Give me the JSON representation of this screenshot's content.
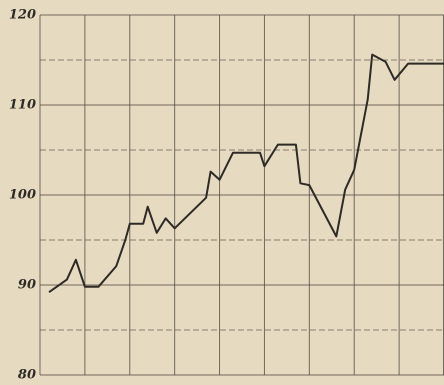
{
  "chart_data": {
    "type": "line",
    "x": [
      0.2,
      0.6,
      0.8,
      1.0,
      1.3,
      1.7,
      1.9,
      2.0,
      2.3,
      2.4,
      2.6,
      2.8,
      3.0,
      3.7,
      3.8,
      4.0,
      4.3,
      4.9,
      5.0,
      5.3,
      5.7,
      5.8,
      6.0,
      6.6,
      6.8,
      7.0,
      7.3,
      7.4,
      7.7,
      7.9,
      8.2,
      9.0
    ],
    "series": [
      {
        "color": "#2e2a26",
        "values": [
          89.2,
          90.6,
          92.8,
          89.8,
          89.8,
          92.1,
          95.0,
          96.8,
          96.8,
          98.7,
          95.8,
          97.4,
          96.3,
          99.7,
          102.6,
          101.7,
          104.7,
          104.7,
          103.2,
          105.6,
          105.6,
          101.3,
          101.1,
          95.4,
          100.6,
          102.8,
          110.6,
          115.6,
          114.8,
          112.8,
          114.6,
          114.6
        ]
      }
    ],
    "xlim": [
      0,
      9
    ],
    "xticks": [
      0,
      1,
      2,
      3,
      4,
      5,
      6,
      7,
      8,
      9
    ],
    "ylim": [
      80,
      120
    ],
    "yticks": [
      80,
      90,
      100,
      110,
      120
    ],
    "yminorticks": [
      85,
      95,
      105,
      115
    ],
    "grid": true
  }
}
